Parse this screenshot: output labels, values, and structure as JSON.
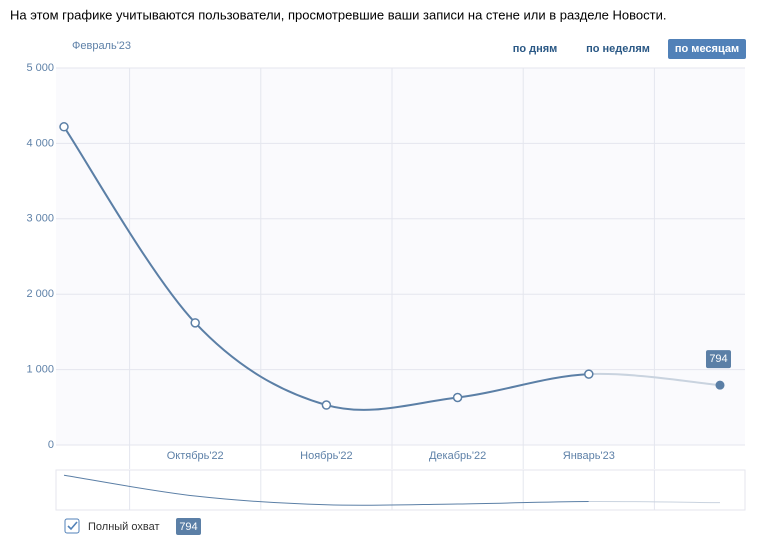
{
  "chart_data": {
    "type": "line",
    "intro": "На этом графике учитываются пользователи, просмотревшие ваши записи на стене или в разделе Новости.",
    "period": "Февраль'23",
    "buttons": [
      "по дням",
      "по неделям",
      "по месяцам"
    ],
    "active_button": 2,
    "categories": [
      null,
      "Октябрь'22",
      "Ноябрь'22",
      "Декабрь'22",
      "Январь'23",
      null
    ],
    "series": [
      {
        "name": "Полный охват",
        "color": "#5b7fa6",
        "values": [
          4220,
          1620,
          530,
          630,
          940,
          794
        ]
      }
    ],
    "ylim": [
      0,
      5000
    ],
    "yticks": [
      0,
      {
        "value": 1000,
        "label": "1 000"
      },
      {
        "value": 2000,
        "label": "2 000"
      },
      {
        "value": 3000,
        "label": "3 000"
      },
      {
        "value": 4000,
        "label": "4 000"
      },
      {
        "value": 5000,
        "label": "5 000"
      }
    ],
    "grid": true
  }
}
